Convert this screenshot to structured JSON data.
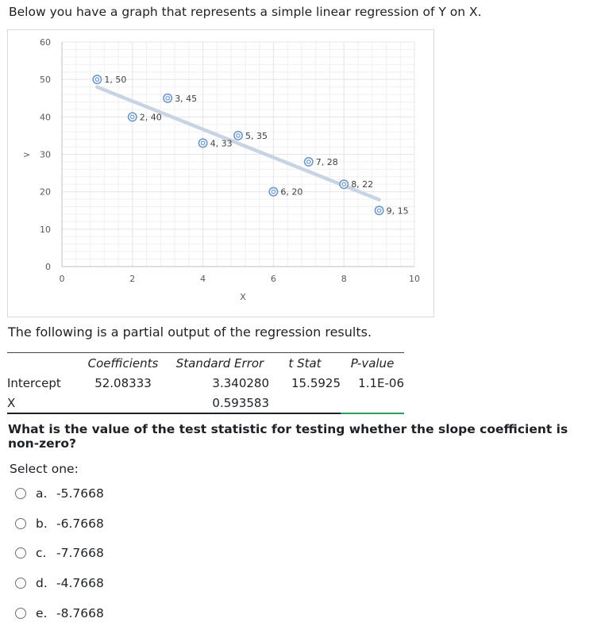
{
  "intro_text": "Below you have a graph that represents a simple linear regression of Y on X.",
  "chart_data": {
    "type": "scatter",
    "title": "",
    "xlabel": "X",
    "ylabel": "Y",
    "xlim": [
      0,
      10
    ],
    "ylim": [
      0,
      60
    ],
    "x_ticks": [
      0,
      2,
      4,
      6,
      8,
      10
    ],
    "y_ticks": [
      0,
      10,
      20,
      30,
      40,
      50,
      60
    ],
    "y_axis_marker": ">",
    "grid": true,
    "points": [
      {
        "x": 1,
        "y": 50,
        "label": "1, 50"
      },
      {
        "x": 2,
        "y": 40,
        "label": "2, 40"
      },
      {
        "x": 3,
        "y": 45,
        "label": "3, 45"
      },
      {
        "x": 4,
        "y": 33,
        "label": "4, 33"
      },
      {
        "x": 5,
        "y": 35,
        "label": "5, 35"
      },
      {
        "x": 6,
        "y": 20,
        "label": "6, 20"
      },
      {
        "x": 7,
        "y": 28,
        "label": "7, 28"
      },
      {
        "x": 8,
        "y": 22,
        "label": "8, 22"
      },
      {
        "x": 9,
        "y": 15,
        "label": "9, 15"
      }
    ],
    "trendline": {
      "from": {
        "x": 1,
        "y": 47.97
      },
      "to": {
        "x": 9,
        "y": 17.88
      }
    },
    "colors": {
      "trendline": "#c9d3e3",
      "marker": "#6f98c9",
      "grid": "#e6e6e6"
    }
  },
  "partial_text": "The following is a partial output of the regression results.",
  "regression": {
    "headers": [
      "",
      "Coefficients",
      "Standard Error",
      "t Stat",
      "P-value"
    ],
    "rows": [
      [
        "Intercept",
        "52.08333",
        "3.340280",
        "15.5925",
        "1.1E-06"
      ],
      [
        "X",
        "",
        "0.593583",
        "",
        ""
      ]
    ]
  },
  "question": "What is the value of the test statistic for testing whether the slope coefficient is non-zero?",
  "select_label": "Select one:",
  "options": [
    {
      "letter": "a.",
      "value": "-5.7668"
    },
    {
      "letter": "b.",
      "value": "-6.7668"
    },
    {
      "letter": "c.",
      "value": "-7.7668"
    },
    {
      "letter": "d.",
      "value": "-4.7668"
    },
    {
      "letter": "e.",
      "value": "-8.7668"
    }
  ]
}
